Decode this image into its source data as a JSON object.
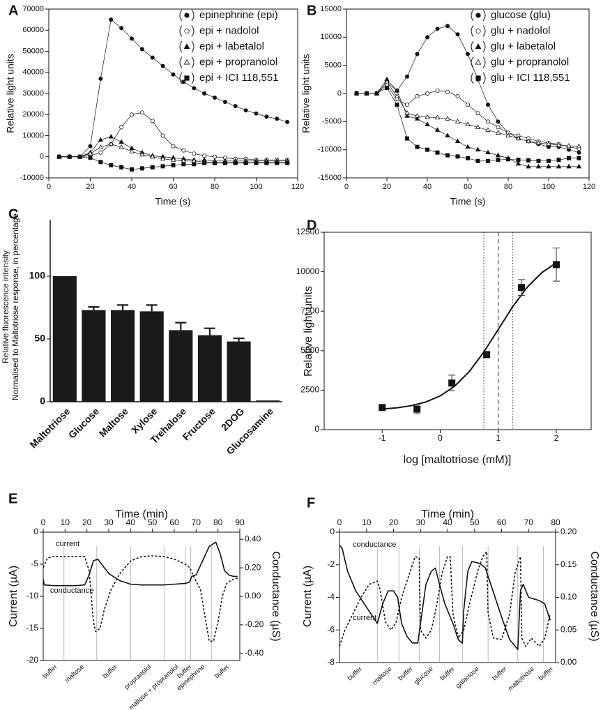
{
  "chart_data": [
    {
      "type": "line",
      "panel": "A",
      "x_label": "Time (s)",
      "y_label": "Relative light units",
      "legend": "upper right",
      "xlim": [
        0,
        120
      ],
      "xticks": [
        0,
        20,
        40,
        60,
        80,
        100,
        120
      ],
      "ylim": [
        -10000,
        70000
      ],
      "yticks": [
        -10000,
        0,
        10000,
        20000,
        30000,
        40000,
        50000,
        60000,
        70000
      ],
      "x": [
        5,
        10,
        15,
        20,
        25,
        30,
        35,
        40,
        45,
        50,
        55,
        60,
        65,
        70,
        75,
        80,
        85,
        90,
        95,
        100,
        105,
        110,
        115
      ],
      "series": [
        {
          "name": "epinephrine (epi)",
          "marker": "filled-circle",
          "color": "#111111",
          "values": [
            0,
            0,
            0,
            5000,
            37000,
            65000,
            61000,
            56000,
            51000,
            47000,
            43000,
            39000,
            35500,
            32500,
            30000,
            28000,
            26000,
            24000,
            22000,
            20500,
            19000,
            18000,
            16500
          ]
        },
        {
          "name": "epi + nadolol",
          "marker": "open-circle",
          "color": "#111111",
          "values": [
            0,
            0,
            0,
            500,
            2000,
            6000,
            14000,
            20000,
            21000,
            17000,
            10000,
            5000,
            3000,
            1500,
            500,
            0,
            -500,
            -1000,
            -1000,
            -1500,
            -1500,
            -1500,
            -1500
          ]
        },
        {
          "name": "epi + labetalol",
          "marker": "filled-triangle",
          "color": "#111111",
          "values": [
            0,
            0,
            0,
            2000,
            8000,
            9500,
            7000,
            4000,
            2000,
            500,
            0,
            -500,
            -1000,
            -1500,
            -1500,
            -2000,
            -2000,
            -2000,
            -2000,
            -2000,
            -2000,
            -2000,
            -2000
          ]
        },
        {
          "name": "epi + propranolol",
          "marker": "open-triangle",
          "color": "#111111",
          "values": [
            0,
            0,
            0,
            1500,
            4500,
            6000,
            4500,
            2500,
            1000,
            0,
            -1000,
            -1500,
            -2000,
            -2000,
            -2500,
            -2500,
            -2500,
            -2500,
            -2500,
            -2500,
            -2500,
            -2500,
            -2500
          ]
        },
        {
          "name": "epi + ICI 118,551",
          "marker": "filled-square",
          "color": "#111111",
          "values": [
            0,
            0,
            0,
            -500,
            -2500,
            -4000,
            -5000,
            -6000,
            -5500,
            -5000,
            -4500,
            -4000,
            -3500,
            -3500,
            -3000,
            -3000,
            -3000,
            -3000,
            -3000,
            -3000,
            -3000,
            -3000,
            -3000
          ]
        }
      ]
    },
    {
      "type": "line",
      "panel": "B",
      "x_label": "Time (s)",
      "y_label": "Relative light units",
      "legend": "upper right",
      "xlim": [
        0,
        120
      ],
      "xticks": [
        0,
        20,
        40,
        60,
        80,
        100,
        120
      ],
      "ylim": [
        -15000,
        15000
      ],
      "yticks": [
        -15000,
        -10000,
        -5000,
        0,
        5000,
        10000,
        15000
      ],
      "x": [
        5,
        10,
        15,
        20,
        25,
        30,
        35,
        40,
        45,
        50,
        55,
        60,
        65,
        70,
        75,
        80,
        85,
        90,
        95,
        100,
        105,
        110,
        115
      ],
      "series": [
        {
          "name": "glucose (glu)",
          "marker": "filled-circle",
          "color": "#111111",
          "values": [
            0,
            0,
            0,
            2000,
            500,
            3000,
            7000,
            10000,
            11500,
            12000,
            10500,
            7000,
            2500,
            -2000,
            -5000,
            -7000,
            -8000,
            -8500,
            -9000,
            -9500,
            -9500,
            -10000,
            -10500
          ]
        },
        {
          "name": "glu + nadolol",
          "marker": "open-circle",
          "color": "#111111",
          "values": [
            0,
            0,
            0,
            1500,
            -1000,
            -2000,
            -500,
            0,
            500,
            300,
            -500,
            -2000,
            -3500,
            -5000,
            -6000,
            -7000,
            -7500,
            -8000,
            -8500,
            -8800,
            -9000,
            -9500,
            -9800
          ]
        },
        {
          "name": "glu + labetalol",
          "marker": "filled-triangle",
          "color": "#111111",
          "values": [
            0,
            0,
            0,
            2500,
            500,
            -4000,
            -4500,
            -5500,
            -6500,
            -7500,
            -8500,
            -9500,
            -10000,
            -10500,
            -11000,
            -11500,
            -12500,
            -13000,
            -13000,
            -13000,
            -13000,
            -13000,
            -13000
          ]
        },
        {
          "name": "glu + propranolol",
          "marker": "open-triangle",
          "color": "#111111",
          "values": [
            0,
            0,
            0,
            2000,
            -500,
            -3500,
            -4000,
            -4200,
            -4300,
            -4500,
            -5000,
            -5500,
            -6000,
            -6500,
            -7000,
            -7500,
            -8000,
            -8500,
            -8800,
            -9000,
            -9200,
            -9300,
            -9400
          ]
        },
        {
          "name": "glu + ICI 118,551",
          "marker": "filled-square",
          "color": "#111111",
          "values": [
            0,
            0,
            0,
            1000,
            -2000,
            -8000,
            -9500,
            -10000,
            -10500,
            -11000,
            -11200,
            -11500,
            -12000,
            -12000,
            -11800,
            -11700,
            -11800,
            -11900,
            -12000,
            -12000,
            -11800,
            -11500,
            -11500
          ]
        }
      ]
    },
    {
      "type": "bar",
      "panel": "C",
      "y_label": [
        "Relative fluorescence intensity",
        "Normalised to Maltotriose response, in percentage"
      ],
      "categories": [
        "Maltotriose",
        "Glucose",
        "Maltose",
        "Xylose",
        "Trehalose",
        "Fructose",
        "2DOG",
        "Glucosamine"
      ],
      "values": [
        100,
        73,
        73,
        72,
        57,
        53,
        48,
        1
      ],
      "errors": [
        null,
        2.5,
        4,
        5,
        6,
        5.5,
        2.5,
        null
      ],
      "color": "#1a1a1a",
      "ylim": [
        0,
        145
      ],
      "yticks": [
        0,
        50,
        100
      ]
    },
    {
      "type": "scatter",
      "panel": "D",
      "x_label": "log [maltotriose (mM)]",
      "y_label": "Relative light units",
      "xlim": [
        -2,
        2.6
      ],
      "xticks": [
        -1,
        0,
        1,
        2
      ],
      "ylim": [
        0,
        12500
      ],
      "yticks": [
        0,
        2500,
        5000,
        7500,
        10000,
        12500
      ],
      "x": [
        -1,
        -0.4,
        0.2,
        0.8,
        1.4,
        2
      ],
      "values": [
        1400,
        1300,
        2950,
        4750,
        9000,
        10450
      ],
      "errors": [
        null,
        300,
        500,
        200,
        500,
        1050
      ],
      "color": "#111111",
      "fit": {
        "x": [
          -1,
          -0.75,
          -0.5,
          -0.25,
          0,
          0.25,
          0.5,
          0.75,
          1,
          1.25,
          1.5,
          1.75,
          2
        ],
        "values": [
          1302,
          1380,
          1516,
          1748,
          2136,
          2756,
          3676,
          4908,
          6350,
          7794,
          9026,
          9944,
          10564
        ]
      },
      "vlines": [
        {
          "x": 0.75,
          "style": "dotted"
        },
        {
          "x": 1,
          "style": "dashed"
        },
        {
          "x": 1.25,
          "style": "dotted"
        }
      ]
    },
    {
      "type": "line",
      "panel": "E",
      "x_label": "Time (min)",
      "y_label": "Current (µA)",
      "y2_label": "Conductance (µS)",
      "xlim": [
        0,
        90
      ],
      "xticks": [
        0,
        10,
        20,
        30,
        40,
        50,
        60,
        70,
        80,
        90
      ],
      "ylim": [
        -20,
        0
      ],
      "yticks": [
        -20,
        -15,
        -10,
        -5,
        0
      ],
      "y2lim": [
        -0.45,
        0.45
      ],
      "y2ticks": [
        {
          "value": 0.4,
          "label": "0.40"
        },
        {
          "value": 0.2,
          "label": "0.20"
        },
        {
          "value": 0,
          "label": "0.00"
        },
        {
          "value": -0.2,
          "label": "-0.20"
        },
        {
          "value": -0.4,
          "label": "-0.40"
        }
      ],
      "markers": [
        9.5,
        24.5,
        40,
        55.5,
        65,
        67.5,
        77
      ],
      "phases": [
        "buffer",
        "maltose",
        "buffer",
        "propranolol",
        "maltose + propranolol",
        "buffer",
        "epinephrine",
        "buffer"
      ],
      "series": [
        {
          "name": "current",
          "dash": true,
          "color": "#111111",
          "x": [
            0,
            2,
            5,
            10,
            15,
            19,
            21,
            23,
            24,
            26,
            28,
            31,
            35,
            40,
            45,
            50,
            55,
            60,
            65,
            67,
            69,
            72,
            74,
            76,
            78,
            80,
            82,
            84,
            86,
            88,
            89
          ],
          "values": [
            -5.5,
            -4,
            -3.8,
            -3.8,
            -3.8,
            -3.8,
            -6,
            -14,
            -15.5,
            -15,
            -12,
            -9,
            -6.5,
            -4.5,
            -3.8,
            -3.7,
            -3.8,
            -4.2,
            -5,
            -5.5,
            -7,
            -9,
            -13,
            -17,
            -17,
            -14,
            -10,
            -8,
            -7.5,
            -7.2,
            -7.2
          ]
        },
        {
          "name": "conductance",
          "axis": "y2",
          "dash": false,
          "color": "#111111",
          "x": [
            0,
            0.5,
            5,
            10,
            15,
            19,
            21,
            23,
            25,
            27,
            30,
            35,
            40,
            45,
            50,
            55,
            60,
            65,
            67,
            68,
            70,
            73,
            76,
            79,
            81,
            83,
            85,
            87,
            89
          ],
          "values": [
            0.12,
            0.08,
            0.075,
            0.075,
            0.075,
            0.08,
            0.15,
            0.25,
            0.26,
            0.22,
            0.16,
            0.11,
            0.085,
            0.08,
            0.08,
            0.08,
            0.085,
            0.09,
            0.1,
            0.14,
            0.15,
            0.25,
            0.35,
            0.38,
            0.3,
            0.18,
            0.15,
            0.14,
            0.14
          ]
        }
      ]
    },
    {
      "type": "line",
      "panel": "F",
      "x_label": "Time (min)",
      "y_label": "Current (µA)",
      "y2_label": "Conductance (µS)",
      "xlim": [
        0,
        80
      ],
      "xticks": [
        0,
        10,
        20,
        30,
        40,
        50,
        60,
        70,
        80
      ],
      "ylim": [
        -8,
        0
      ],
      "yticks": [
        -8,
        -6,
        -4,
        -2,
        0
      ],
      "y2lim": [
        0,
        0.2
      ],
      "y2ticks": [
        {
          "value": 0,
          "label": "0.00"
        },
        {
          "value": 0.05,
          "label": "0.05"
        },
        {
          "value": 0.1,
          "label": "0.10"
        },
        {
          "value": 0.15,
          "label": "0.15"
        },
        {
          "value": 0.2,
          "label": "0.20"
        }
      ],
      "markers": [
        14,
        22,
        29.5,
        37,
        45.5,
        55,
        66,
        75.5
      ],
      "phases": [
        "buffer",
        "maltose",
        "buffer",
        "glucose",
        "buffer",
        "galactose",
        "buffer",
        "maltotriose",
        "buffer"
      ],
      "series": [
        {
          "name": "current",
          "dash": true,
          "color": "#111111",
          "x": [
            0,
            2,
            5,
            8,
            11,
            14,
            15,
            17,
            19,
            21,
            23,
            26,
            28,
            29.5,
            30,
            32,
            34,
            36,
            38,
            40,
            41,
            42,
            44,
            46,
            48,
            51,
            53,
            54.5,
            55,
            57,
            60,
            63,
            65,
            67,
            67.5,
            69,
            71,
            74,
            76,
            78
          ],
          "values": [
            -7,
            -6,
            -5,
            -4,
            -3.2,
            -3,
            -3.5,
            -5.5,
            -6,
            -5.5,
            -4,
            -2.5,
            -1.5,
            -1.6,
            -6,
            -6.5,
            -6,
            -4.5,
            -2.5,
            -1.5,
            -1.5,
            -5,
            -6.5,
            -6,
            -4.5,
            -2.5,
            -1.5,
            -1.2,
            -5,
            -6.5,
            -6.6,
            -5,
            -2.5,
            -1.5,
            -6.5,
            -7,
            -6.5,
            -7,
            -6.5,
            -5
          ]
        },
        {
          "name": "conductance",
          "axis": "y2",
          "dash": false,
          "color": "#111111",
          "x": [
            0,
            1,
            3,
            6,
            10,
            14,
            16,
            18,
            20,
            21.5,
            23,
            25,
            27,
            29,
            30,
            32,
            34,
            35.5,
            37,
            39,
            42,
            44,
            45.5,
            46,
            47.5,
            49,
            52,
            54,
            56,
            60,
            63,
            66,
            67,
            68,
            70,
            74,
            76,
            78
          ],
          "values": [
            0.18,
            0.175,
            0.14,
            0.11,
            0.085,
            0.06,
            0.09,
            0.11,
            0.11,
            0.1,
            0.06,
            0.04,
            0.03,
            0.03,
            0.06,
            0.12,
            0.14,
            0.145,
            0.12,
            0.09,
            0.06,
            0.035,
            0.03,
            0.08,
            0.14,
            0.155,
            0.152,
            0.145,
            0.12,
            0.07,
            0.035,
            0.02,
            0.11,
            0.12,
            0.1,
            0.095,
            0.09,
            0.065
          ]
        }
      ]
    }
  ]
}
